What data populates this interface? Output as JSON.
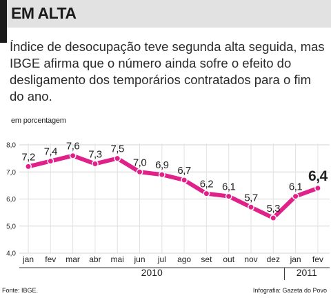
{
  "header": {
    "title": "EM ALTA",
    "subtitle": "Índice de desocupação teve segunda alta seguida, mas IBGE afirma que o número ainda sofre o efeito do desligamento dos temporários contratados para o fim do ano."
  },
  "footer": {
    "source": "Fonte: IBGE.",
    "credit": "Infografia: Gazeta do Povo"
  },
  "colors": {
    "line": "#e0218a",
    "header_bg": "#e2e2e2",
    "accent_bar": "#1a1a1a"
  },
  "chart_data": {
    "type": "line",
    "ylabel": "em porcentagem",
    "ylim": [
      4.0,
      8.0
    ],
    "y_ticks": [
      "8,0",
      "7,0",
      "6,0",
      "5,0",
      "4,0"
    ],
    "grid": true,
    "categories": [
      "jan",
      "fev",
      "mar",
      "abr",
      "mai",
      "jun",
      "jul",
      "ago",
      "set",
      "out",
      "nov",
      "dez",
      "jan",
      "fev"
    ],
    "values": [
      7.2,
      7.4,
      7.6,
      7.3,
      7.5,
      7.0,
      6.9,
      6.7,
      6.2,
      6.1,
      5.7,
      5.3,
      6.1,
      6.4
    ],
    "value_labels": [
      "7,2",
      "7,4",
      "7,6",
      "7,3",
      "7,5",
      "7,0",
      "6,9",
      "6,7",
      "6,2",
      "6,1",
      "5,7",
      "5,3",
      "6,1",
      "6,4"
    ],
    "years": [
      {
        "label": "2010",
        "months": 12
      },
      {
        "label": "2011",
        "months": 2
      }
    ]
  }
}
